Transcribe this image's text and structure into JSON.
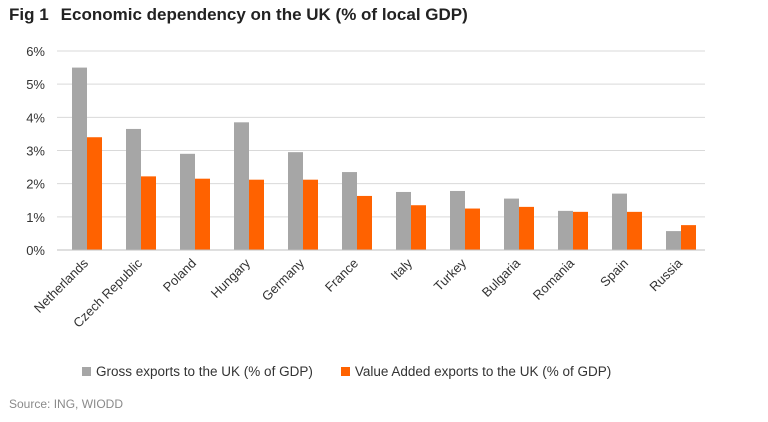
{
  "title": {
    "fig": "Fig 1",
    "text": "Economic dependency on the UK (% of local GDP)"
  },
  "source": "Source: ING, WIODD",
  "colors": {
    "gross": "#a6a6a6",
    "value_added": "#ff6200",
    "grid": "#d9d9d9"
  },
  "chart_data": {
    "type": "bar",
    "title": "Economic dependency on the UK (% of local GDP)",
    "xlabel": "",
    "ylabel": "",
    "ylim": [
      0,
      6
    ],
    "yticks": [
      0,
      1,
      2,
      3,
      4,
      5,
      6
    ],
    "ytick_labels": [
      "0%",
      "1%",
      "2%",
      "3%",
      "4%",
      "5%",
      "6%"
    ],
    "grid": true,
    "legend_position": "bottom",
    "categories": [
      "Netherlands",
      "Czech Republic",
      "Poland",
      "Hungary",
      "Germany",
      "France",
      "Italy",
      "Turkey",
      "Bulgaria",
      "Romania",
      "Spain",
      "Russia"
    ],
    "series": [
      {
        "name": "Gross exports to the UK (% of GDP)",
        "color_key": "gross",
        "values": [
          5.5,
          3.65,
          2.9,
          3.85,
          2.95,
          2.35,
          1.75,
          1.78,
          1.55,
          1.18,
          1.7,
          0.57
        ]
      },
      {
        "name": "Value Added exports to the UK (% of GDP)",
        "color_key": "value_added",
        "values": [
          3.4,
          2.22,
          2.15,
          2.12,
          2.12,
          1.63,
          1.35,
          1.25,
          1.3,
          1.15,
          1.15,
          0.75
        ]
      }
    ]
  }
}
